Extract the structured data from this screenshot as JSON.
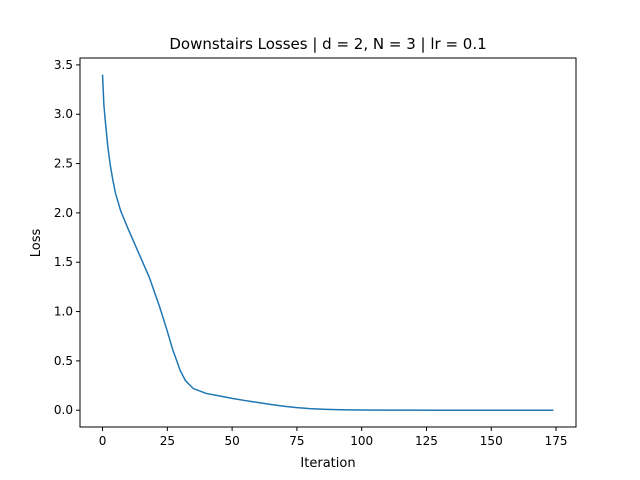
{
  "chart_data": {
    "type": "line",
    "title": "Downstairs Losses | d = 2, N = 3 | lr = 0.1",
    "xlabel": "Iteration",
    "ylabel": "Loss",
    "xlim": [
      -8.7,
      182.7
    ],
    "ylim": [
      -0.17,
      3.57
    ],
    "xticks": [
      0,
      25,
      50,
      75,
      100,
      125,
      150,
      175
    ],
    "yticks": [
      0.0,
      0.5,
      1.0,
      1.5,
      2.0,
      2.5,
      3.0,
      3.5
    ],
    "xtick_labels": [
      "0",
      "25",
      "50",
      "75",
      "100",
      "125",
      "150",
      "175"
    ],
    "ytick_labels": [
      "0.0",
      "0.5",
      "1.0",
      "1.5",
      "2.0",
      "2.5",
      "3.0",
      "3.5"
    ],
    "grid": false,
    "series": [
      {
        "color": "#1f77b4",
        "x": [
          0,
          0.5,
          1,
          2,
          3,
          4,
          5,
          7,
          10,
          13,
          15,
          18,
          20,
          22,
          25,
          27,
          30,
          32,
          35,
          38,
          40,
          45,
          50,
          55,
          60,
          65,
          70,
          75,
          80,
          85,
          90,
          95,
          100,
          110,
          120,
          130,
          140,
          150,
          160,
          174
        ],
        "y": [
          3.4,
          3.1,
          2.95,
          2.68,
          2.48,
          2.33,
          2.2,
          2.02,
          1.83,
          1.65,
          1.53,
          1.35,
          1.2,
          1.05,
          0.8,
          0.62,
          0.4,
          0.3,
          0.22,
          0.19,
          0.17,
          0.145,
          0.12,
          0.098,
          0.078,
          0.058,
          0.04,
          0.026,
          0.016,
          0.01,
          0.006,
          0.003,
          0.002,
          0.001,
          0.0005,
          0.0003,
          0.0002,
          0.0001,
          0.0001,
          0.0
        ]
      }
    ]
  }
}
